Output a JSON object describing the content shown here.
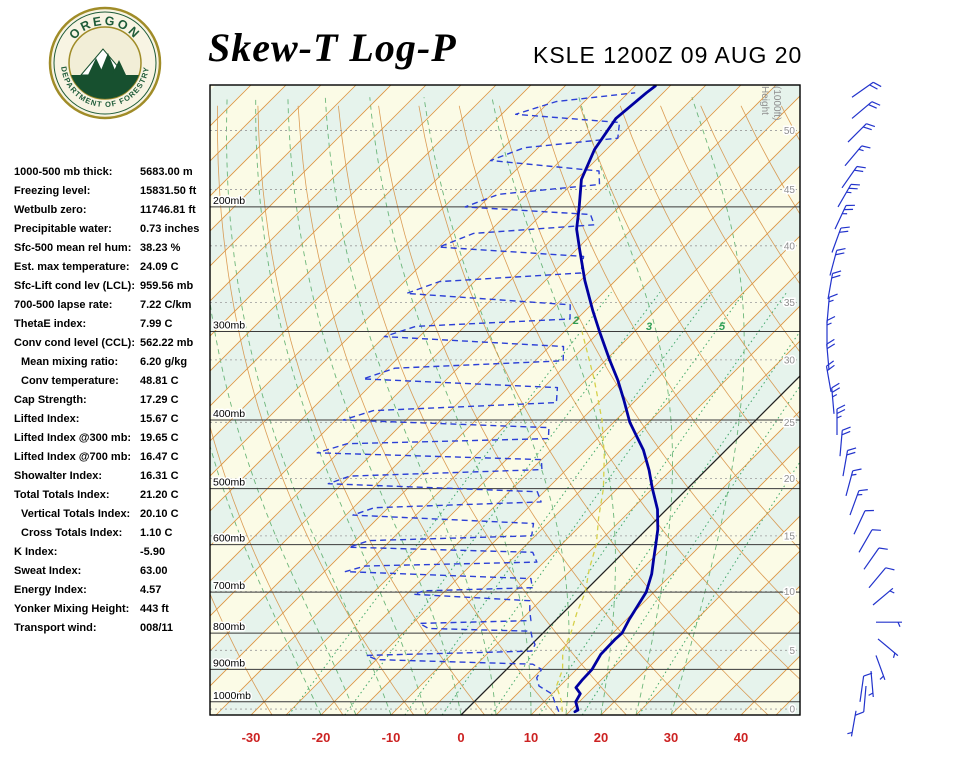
{
  "header": {
    "title": "Skew-T Log-P",
    "station_line": "KSLE 1200Z 09 AUG 20"
  },
  "logo": {
    "top_text": "OREGON",
    "bottom_text": "DEPARTMENT OF FORESTRY"
  },
  "indices": [
    {
      "label": "1000-500 mb thick:",
      "value": "5683.00 m",
      "indent": false
    },
    {
      "label": "Freezing level:",
      "value": "15831.50 ft",
      "indent": false
    },
    {
      "label": "Wetbulb zero:",
      "value": "11746.81 ft",
      "indent": false
    },
    {
      "label": "Precipitable water:",
      "value": "0.73 inches",
      "indent": false
    },
    {
      "label": "Sfc-500 mean rel hum:",
      "value": "38.23 %",
      "indent": false
    },
    {
      "label": "Est. max temperature:",
      "value": "24.09 C",
      "indent": false
    },
    {
      "label": "Sfc-Lift cond lev (LCL):",
      "value": "959.56 mb",
      "indent": false
    },
    {
      "label": "700-500 lapse rate:",
      "value": "7.22 C/km",
      "indent": false
    },
    {
      "label": "ThetaE index:",
      "value": "7.99 C",
      "indent": false
    },
    {
      "label": "Conv cond level (CCL):",
      "value": "562.22 mb",
      "indent": false
    },
    {
      "label": "Mean mixing ratio:",
      "value": "6.20 g/kg",
      "indent": true
    },
    {
      "label": "Conv temperature:",
      "value": "48.81 C",
      "indent": true
    },
    {
      "label": "Cap Strength:",
      "value": "17.29 C",
      "indent": false
    },
    {
      "label": "Lifted Index:",
      "value": "15.67 C",
      "indent": false
    },
    {
      "label": "Lifted Index @300 mb:",
      "value": "19.65 C",
      "indent": false
    },
    {
      "label": "Lifted Index @700 mb:",
      "value": "16.47 C",
      "indent": false
    },
    {
      "label": "Showalter Index:",
      "value": "16.31 C",
      "indent": false
    },
    {
      "label": "Total Totals Index:",
      "value": "21.20 C",
      "indent": false
    },
    {
      "label": "Vertical Totals Index:",
      "value": "20.10 C",
      "indent": true
    },
    {
      "label": "Cross Totals Index:",
      "value": "1.10 C",
      "indent": true
    },
    {
      "label": "K Index:",
      "value": "-5.90",
      "indent": false
    },
    {
      "label": "Sweat Index:",
      "value": "63.00",
      "indent": false
    },
    {
      "label": "Energy Index:",
      "value": "4.57",
      "indent": false
    },
    {
      "label": "Yonker Mixing Height:",
      "value": "443 ft",
      "indent": false
    },
    {
      "label": "Transport wind:",
      "value": "008/11",
      "indent": false
    }
  ],
  "chart_data": {
    "type": "skewt-log-p",
    "title": "Skew-T Log-P",
    "station": "KSLE",
    "valid_time": "1200Z 09 AUG 20",
    "pressure_axis": {
      "units": "mb",
      "log_scale": true,
      "bottom": 1044,
      "top": 135
    },
    "pressure_levels": [
      {
        "p": 200,
        "label": "200mb"
      },
      {
        "p": 300,
        "label": "300mb"
      },
      {
        "p": 400,
        "label": "400mb"
      },
      {
        "p": 500,
        "label": "500mb"
      },
      {
        "p": 600,
        "label": "600mb"
      },
      {
        "p": 700,
        "label": "700mb"
      },
      {
        "p": 800,
        "label": "800mb"
      },
      {
        "p": 900,
        "label": "900mb"
      },
      {
        "p": 1000,
        "label": "1000mb"
      }
    ],
    "temp_axis": {
      "units": "C",
      "ticks": [
        -30,
        -20,
        -10,
        0,
        10,
        20,
        30,
        40
      ],
      "skew_deg": 45
    },
    "height_axis": {
      "title_1": "Height",
      "title_2": "(1000ft)"
    },
    "height_scale": {
      "units": "1000ft",
      "entries": [
        [
          0,
          1024
        ],
        [
          5,
          846
        ],
        [
          10,
          699
        ],
        [
          15,
          583
        ],
        [
          20,
          484
        ],
        [
          25,
          403
        ],
        [
          30,
          329
        ],
        [
          35,
          273
        ],
        [
          40,
          227
        ],
        [
          45,
          189
        ],
        [
          50,
          156
        ]
      ]
    },
    "isotherm_step": 5,
    "dry_adiabats": [
      -30,
      -20,
      -10,
      0,
      10,
      20,
      30,
      40,
      50,
      60,
      70,
      80,
      90,
      100,
      110,
      120,
      130,
      140,
      150
    ],
    "moist_adiabats": [
      -20,
      -15,
      -10,
      -5,
      0,
      5,
      10,
      15,
      20,
      25,
      30
    ],
    "mixing_ratios": [
      0.5,
      1,
      2,
      3,
      5,
      8,
      12,
      20
    ],
    "mixing_labels": [
      {
        "text": "2",
        "x": 576,
        "y": 324
      },
      {
        "text": "3",
        "x": 649,
        "y": 330
      },
      {
        "text": "5",
        "x": 722,
        "y": 330
      }
    ],
    "series": {
      "temperature": {
        "name": "Temperature (C)",
        "points": [
          [
            1033,
            15.8
          ],
          [
            1027,
            16.0
          ],
          [
            1000,
            14.5
          ],
          [
            974,
            14.0
          ],
          [
            955,
            12.5
          ],
          [
            930,
            12.3
          ],
          [
            900,
            12.2
          ],
          [
            857,
            11.3
          ],
          [
            817,
            11.2
          ],
          [
            800,
            11.3
          ],
          [
            766,
            10.4
          ],
          [
            730,
            9.6
          ],
          [
            700,
            8.9
          ],
          [
            660,
            7.1
          ],
          [
            628,
            5.2
          ],
          [
            600,
            3.5
          ],
          [
            571,
            1.6
          ],
          [
            535,
            -1.3
          ],
          [
            500,
            -5.0
          ],
          [
            471,
            -8.1
          ],
          [
            441,
            -11.8
          ],
          [
            403,
            -17.7
          ],
          [
            375,
            -21.7
          ],
          [
            351,
            -25.5
          ],
          [
            329,
            -29.5
          ],
          [
            300,
            -35.0
          ],
          [
            280,
            -39.0
          ],
          [
            254,
            -44.4
          ],
          [
            230,
            -49.5
          ],
          [
            215,
            -52.9
          ],
          [
            200,
            -55.7
          ],
          [
            183,
            -59.3
          ],
          [
            166,
            -61.7
          ],
          [
            150,
            -63.1
          ],
          [
            138,
            -62.4
          ],
          [
            135,
            -62.1
          ]
        ]
      },
      "dewpoint": {
        "name": "Dewpoint (C)",
        "points": [
          [
            1033,
            13.5
          ],
          [
            1000,
            11.5
          ],
          [
            975,
            10.0
          ],
          [
            950,
            7.0
          ],
          [
            925,
            5.5
          ],
          [
            900,
            5.0
          ],
          [
            885,
            3.0
          ],
          [
            872,
            -20.0
          ],
          [
            860,
            -22.0
          ],
          [
            848,
            1.0
          ],
          [
            830,
            0.5
          ],
          [
            810,
            -1.0
          ],
          [
            795,
            -2.0
          ],
          [
            788,
            -17.0
          ],
          [
            775,
            -19.0
          ],
          [
            768,
            -3.5
          ],
          [
            745,
            -5.0
          ],
          [
            720,
            -6.5
          ],
          [
            705,
            -24.0
          ],
          [
            697,
            -23.0
          ],
          [
            690,
            -8.0
          ],
          [
            670,
            -9.5
          ],
          [
            655,
            -37.0
          ],
          [
            643,
            -35.0
          ],
          [
            635,
            -11.0
          ],
          [
            615,
            -13.0
          ],
          [
            605,
            -40.0
          ],
          [
            592,
            -38.0
          ],
          [
            583,
            -15.5
          ],
          [
            560,
            -17.0
          ],
          [
            545,
            -44.0
          ],
          [
            532,
            -42.0
          ],
          [
            522,
            -19.0
          ],
          [
            505,
            -21.0
          ],
          [
            492,
            -52.0
          ],
          [
            480,
            -50.0
          ],
          [
            470,
            -23.5
          ],
          [
            455,
            -25.0
          ],
          [
            445,
            -58.0
          ],
          [
            432,
            -55.0
          ],
          [
            425,
            -27.0
          ],
          [
            410,
            -28.5
          ],
          [
            400,
            -59.0
          ],
          [
            388,
            -56.0
          ],
          [
            378,
            -31.0
          ],
          [
            360,
            -33.0
          ],
          [
            350,
            -62.0
          ],
          [
            338,
            -59.0
          ],
          [
            330,
            -36.0
          ],
          [
            315,
            -38.0
          ],
          [
            305,
            -65.0
          ],
          [
            295,
            -62.0
          ],
          [
            288,
            -41.0
          ],
          [
            275,
            -43.0
          ],
          [
            265,
            -68.0
          ],
          [
            255,
            -65.0
          ],
          [
            248,
            -46.0
          ],
          [
            235,
            -48.0
          ],
          [
            228,
            -70.0
          ],
          [
            218,
            -67.0
          ],
          [
            212,
            -51.0
          ],
          [
            205,
            -53.0
          ],
          [
            200,
            -72.0
          ],
          [
            192,
            -69.0
          ],
          [
            186,
            -56.0
          ],
          [
            178,
            -58.0
          ],
          [
            172,
            -75.0
          ],
          [
            165,
            -72.0
          ],
          [
            160,
            -60.0
          ],
          [
            152,
            -62.0
          ],
          [
            148,
            -78.0
          ],
          [
            142,
            -74.0
          ],
          [
            138,
            -64.0
          ]
        ]
      },
      "wetbulb": {
        "name": "Wet-bulb (C)",
        "points": [
          [
            1033,
            14.0
          ],
          [
            1000,
            12.5
          ],
          [
            950,
            9.5
          ],
          [
            900,
            8.0
          ],
          [
            850,
            5.5
          ],
          [
            800,
            4.0
          ],
          [
            750,
            2.0
          ],
          [
            700,
            0.2
          ],
          [
            650,
            -2.5
          ],
          [
            600,
            -5.0
          ],
          [
            550,
            -8.5
          ],
          [
            500,
            -12.0
          ],
          [
            450,
            -16.5
          ],
          [
            400,
            -22.0
          ],
          [
            350,
            -29.0
          ],
          [
            300,
            -37.5
          ]
        ]
      }
    },
    "wind_barbs": [
      [
        140,
        55,
        20,
        852
      ],
      [
        150,
        50,
        20,
        852
      ],
      [
        162,
        45,
        20,
        848
      ],
      [
        175,
        40,
        15,
        845
      ],
      [
        188,
        35,
        20,
        842
      ],
      [
        200,
        30,
        25,
        838
      ],
      [
        215,
        25,
        25,
        835
      ],
      [
        232,
        20,
        20,
        832
      ],
      [
        250,
        15,
        20,
        830
      ],
      [
        270,
        10,
        20,
        828
      ],
      [
        292,
        5,
        15,
        827
      ],
      [
        315,
        0,
        15,
        827
      ],
      [
        340,
        355,
        20,
        829
      ],
      [
        365,
        350,
        20,
        831
      ],
      [
        392,
        355,
        25,
        834
      ],
      [
        420,
        0,
        25,
        837
      ],
      [
        450,
        5,
        20,
        840
      ],
      [
        480,
        10,
        20,
        843
      ],
      [
        512,
        15,
        15,
        846
      ],
      [
        545,
        20,
        15,
        850
      ],
      [
        580,
        25,
        10,
        854
      ],
      [
        615,
        30,
        10,
        859
      ],
      [
        650,
        35,
        10,
        864
      ],
      [
        690,
        40,
        8,
        869
      ],
      [
        730,
        50,
        5,
        873
      ],
      [
        772,
        90,
        5,
        876
      ],
      [
        815,
        130,
        5,
        878
      ],
      [
        860,
        160,
        5,
        876
      ],
      [
        905,
        175,
        5,
        871
      ],
      [
        950,
        185,
        8,
        866
      ],
      [
        1000,
        8,
        11,
        860
      ],
      [
        1030,
        190,
        5,
        856
      ]
    ],
    "colors": {
      "band_a": "#fbfbe6",
      "band_b": "#e6f3ec",
      "isotherm": "#de9440",
      "dry_adiabat": "#d58c3c",
      "moist_adiabat": "#55aa66",
      "mixing": "#2e9e5b",
      "zero_line": "#222222",
      "pressure_line": "#3a3a3a",
      "height_line": "#9a9a9a",
      "height_text": "#8f8f8f",
      "temp_line": "#0000a0",
      "dew_line": "#2b3fd6",
      "wetbulb_line": "#d6d049",
      "barb": "#2233cc",
      "axis_text": "#cc2222",
      "label_text": "#000000",
      "mixing_label_text": "#2f9e55"
    }
  }
}
